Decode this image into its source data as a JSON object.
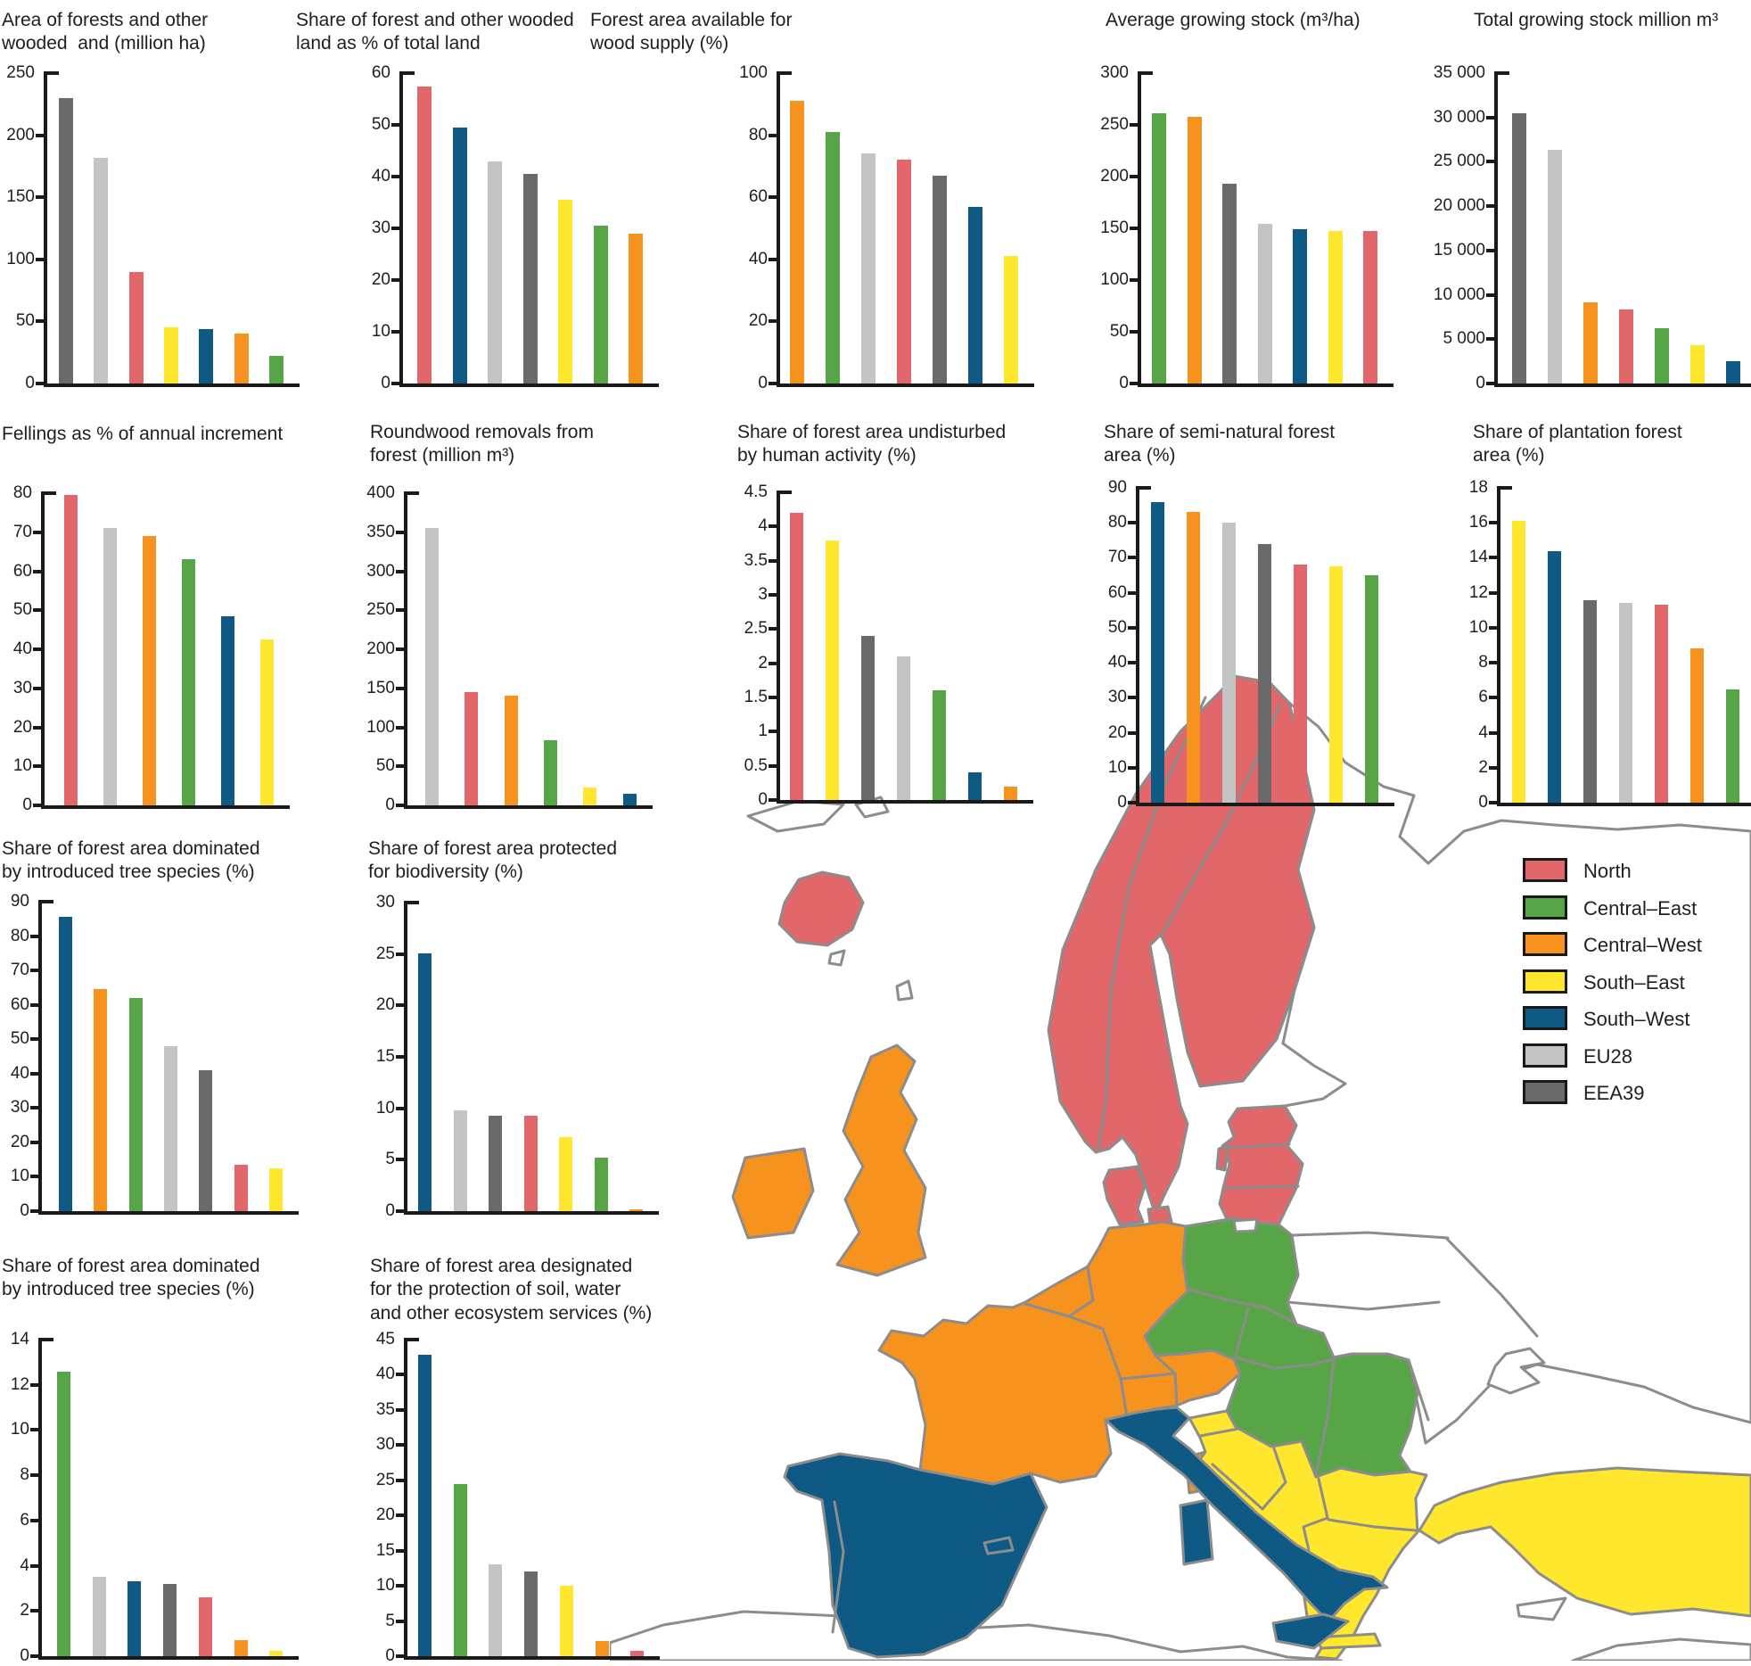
{
  "colors": {
    "regions": {
      "north": "#E2676B",
      "central_east": "#57A546",
      "central_west": "#F6921E",
      "south_east": "#FFE72D",
      "south_west": "#0E5A85",
      "eu28": "#C4C4C4",
      "eea39": "#6A6A6A"
    },
    "axis": "#1A1A1A",
    "map_border": "#8C8C8C",
    "map_plain": "#FFFFFF"
  },
  "legend": {
    "items": [
      {
        "key": "north",
        "label": "North"
      },
      {
        "key": "central_east",
        "label": "Central–East"
      },
      {
        "key": "central_west",
        "label": "Central–West"
      },
      {
        "key": "south_east",
        "label": "South–East"
      },
      {
        "key": "south_west",
        "label": "South–West"
      },
      {
        "key": "eu28",
        "label": "EU28"
      },
      {
        "key": "eea39",
        "label": "EEA39"
      }
    ]
  },
  "chart_data": [
    {
      "type": "bar",
      "title": "Area of forests and other\nwooded  and (million ha)",
      "ymax": 250,
      "yticks": [
        "250",
        "200",
        "150",
        "100",
        "50",
        "0"
      ],
      "bars": [
        {
          "region": "eea39",
          "label": "EEA39",
          "value": 230
        },
        {
          "region": "eu28",
          "label": "EU28",
          "value": 182
        },
        {
          "region": "north",
          "label": "North",
          "value": 90
        },
        {
          "region": "south_east",
          "label": "South–East",
          "value": 45
        },
        {
          "region": "south_west",
          "label": "South–West",
          "value": 44
        },
        {
          "region": "central_west",
          "label": "Central–West",
          "value": 40
        },
        {
          "region": "central_east",
          "label": "Central–East",
          "value": 22
        }
      ]
    },
    {
      "type": "bar",
      "title": "Share of forest and other wooded\nland as % of total land",
      "ymax": 60,
      "yticks": [
        "60",
        "50",
        "40",
        "30",
        "20",
        "10",
        "0"
      ],
      "bars": [
        {
          "region": "north",
          "label": "North",
          "value": 57.5
        },
        {
          "region": "south_west",
          "label": "South–West",
          "value": 49.5
        },
        {
          "region": "eu28",
          "label": "EU28",
          "value": 43
        },
        {
          "region": "eea39",
          "label": "EEA39",
          "value": 40.5
        },
        {
          "region": "south_east",
          "label": "South–East",
          "value": 35.5
        },
        {
          "region": "central_east",
          "label": "Central–East",
          "value": 30.5
        },
        {
          "region": "central_west",
          "label": "Central–West",
          "value": 29
        }
      ]
    },
    {
      "type": "bar",
      "title": "Forest area available for\nwood supply (%)",
      "ymax": 100,
      "yticks": [
        "100",
        "80",
        "60",
        "40",
        "20",
        "0"
      ],
      "bars": [
        {
          "region": "central_west",
          "label": "Central–West",
          "value": 91
        },
        {
          "region": "central_east",
          "label": "Central–East",
          "value": 81
        },
        {
          "region": "eu28",
          "label": "EU28",
          "value": 74
        },
        {
          "region": "north",
          "label": "North",
          "value": 72
        },
        {
          "region": "eea39",
          "label": "EEA39",
          "value": 67
        },
        {
          "region": "south_west",
          "label": "South–West",
          "value": 57
        },
        {
          "region": "south_east",
          "label": "South–East",
          "value": 41
        }
      ]
    },
    {
      "type": "bar",
      "title": "Average growing stock (m³/ha)",
      "ymax": 300,
      "yticks": [
        "300",
        "250",
        "200",
        "150",
        "100",
        "50",
        "0"
      ],
      "bars": [
        {
          "region": "central_east",
          "label": "Central–East",
          "value": 261
        },
        {
          "region": "central_west",
          "label": "Central–West",
          "value": 258
        },
        {
          "region": "eea39",
          "label": "EEA39",
          "value": 193
        },
        {
          "region": "eu28",
          "label": "EU28",
          "value": 154
        },
        {
          "region": "south_west",
          "label": "South–West",
          "value": 149
        },
        {
          "region": "south_east",
          "label": "South–East",
          "value": 147
        },
        {
          "region": "north",
          "label": "North",
          "value": 147
        }
      ]
    },
    {
      "type": "bar",
      "title": "Total growing stock million m³",
      "ymax": 35000,
      "yticks": [
        "35 000",
        "30 000",
        "25 000",
        "20 000",
        "15 000",
        "10 000",
        "5 000",
        "0"
      ],
      "bars": [
        {
          "region": "eea39",
          "label": "EEA39",
          "value": 30500
        },
        {
          "region": "eu28",
          "label": "EU28",
          "value": 26400
        },
        {
          "region": "central_west",
          "label": "Central–West",
          "value": 9200
        },
        {
          "region": "north",
          "label": "North",
          "value": 8300
        },
        {
          "region": "central_east",
          "label": "Central–East",
          "value": 6200
        },
        {
          "region": "south_east",
          "label": "South–East",
          "value": 4300
        },
        {
          "region": "south_west",
          "label": "South–West",
          "value": 2500
        }
      ]
    },
    {
      "type": "bar",
      "title": "Fellings as % of annual increment",
      "ymax": 80,
      "yticks": [
        "80",
        "70",
        "60",
        "50",
        "40",
        "30",
        "20",
        "10",
        "0"
      ],
      "bars": [
        {
          "region": "north",
          "label": "North",
          "value": 79.5
        },
        {
          "region": "eu28",
          "label": "EU28",
          "value": 71
        },
        {
          "region": "central_west",
          "label": "Central–West",
          "value": 69
        },
        {
          "region": "central_east",
          "label": "Central–East",
          "value": 63
        },
        {
          "region": "south_west",
          "label": "South–West",
          "value": 48.5
        },
        {
          "region": "south_east",
          "label": "South–East",
          "value": 42.5
        }
      ]
    },
    {
      "type": "bar",
      "title": "Roundwood removals from\nforest (million m³)",
      "ymax": 400,
      "yticks": [
        "400",
        "350",
        "300",
        "250",
        "200",
        "150",
        "100",
        "50",
        "0"
      ],
      "bars": [
        {
          "region": "eu28",
          "label": "EU28",
          "value": 356
        },
        {
          "region": "north",
          "label": "North",
          "value": 145
        },
        {
          "region": "central_west",
          "label": "Central–West",
          "value": 141
        },
        {
          "region": "central_east",
          "label": "Central–East",
          "value": 84
        },
        {
          "region": "south_east",
          "label": "South–East",
          "value": 23
        },
        {
          "region": "south_west",
          "label": "South–West",
          "value": 15
        }
      ]
    },
    {
      "type": "bar",
      "title": "Share of forest area undisturbed\nby human activity (%)",
      "ymax": 4.5,
      "yticks": [
        "4.5",
        "4",
        "3.5",
        "3",
        "2.5",
        "2",
        "1.5",
        "1",
        "0.5",
        "0"
      ],
      "bars": [
        {
          "region": "north",
          "label": "North",
          "value": 4.2
        },
        {
          "region": "south_east",
          "label": "South–East",
          "value": 3.8
        },
        {
          "region": "eea39",
          "label": "EEA39",
          "value": 2.4
        },
        {
          "region": "eu28",
          "label": "EU28",
          "value": 2.1
        },
        {
          "region": "central_east",
          "label": "Central–East",
          "value": 1.6
        },
        {
          "region": "south_west",
          "label": "South–West",
          "value": 0.4
        },
        {
          "region": "central_west",
          "label": "Central–West",
          "value": 0.2
        }
      ]
    },
    {
      "type": "bar",
      "title": "Share of semi-natural forest\narea (%)",
      "ymax": 90,
      "yticks": [
        "90",
        "80",
        "70",
        "60",
        "50",
        "40",
        "30",
        "20",
        "10",
        "0"
      ],
      "bars": [
        {
          "region": "south_west",
          "label": "South–West",
          "value": 86
        },
        {
          "region": "central_west",
          "label": "Central–West",
          "value": 83
        },
        {
          "region": "eu28",
          "label": "EU28",
          "value": 80
        },
        {
          "region": "eea39",
          "label": "EEA39",
          "value": 74
        },
        {
          "region": "north",
          "label": "North",
          "value": 68
        },
        {
          "region": "south_east",
          "label": "South–East",
          "value": 67.5
        },
        {
          "region": "central_east",
          "label": "Central–East",
          "value": 65
        }
      ]
    },
    {
      "type": "bar",
      "title": "Share of plantation forest\narea (%)",
      "ymax": 18,
      "yticks": [
        "18",
        "16",
        "14",
        "12",
        "10",
        "8",
        "6",
        "4",
        "2",
        "0"
      ],
      "bars": [
        {
          "region": "south_east",
          "label": "South–East",
          "value": 16.1
        },
        {
          "region": "south_west",
          "label": "South–West",
          "value": 14.4
        },
        {
          "region": "eea39",
          "label": "EEA39",
          "value": 11.6
        },
        {
          "region": "eu28",
          "label": "EU28",
          "value": 11.4
        },
        {
          "region": "north",
          "label": "North",
          "value": 11.3
        },
        {
          "region": "central_west",
          "label": "Central–West",
          "value": 8.8
        },
        {
          "region": "central_east",
          "label": "Central–East",
          "value": 6.5
        }
      ]
    },
    {
      "type": "bar",
      "title": "Share of forest area dominated\nby introduced tree species (%)",
      "ymax": 90,
      "yticks": [
        "90",
        "80",
        "70",
        "60",
        "50",
        "40",
        "30",
        "20",
        "10",
        "0"
      ],
      "bars": [
        {
          "region": "south_west",
          "label": "South–West",
          "value": 85.5
        },
        {
          "region": "central_west",
          "label": "Central–West",
          "value": 64.5
        },
        {
          "region": "central_east",
          "label": "Central–East",
          "value": 62
        },
        {
          "region": "eu28",
          "label": "EU28",
          "value": 48
        },
        {
          "region": "eea39",
          "label": "EEA39",
          "value": 41
        },
        {
          "region": "north",
          "label": "North",
          "value": 13.5
        },
        {
          "region": "south_east",
          "label": "South–East",
          "value": 12.5
        }
      ]
    },
    {
      "type": "bar",
      "title": "Share of forest area protected\nfor biodiversity (%)",
      "ymax": 30,
      "yticks": [
        "30",
        "25",
        "20",
        "15",
        "10",
        "5",
        "0"
      ],
      "bars": [
        {
          "region": "south_west",
          "label": "South–West",
          "value": 25.1
        },
        {
          "region": "eu28",
          "label": "EU28",
          "value": 9.8
        },
        {
          "region": "eea39",
          "label": "EEA39",
          "value": 9.3
        },
        {
          "region": "north",
          "label": "North",
          "value": 9.3
        },
        {
          "region": "south_east",
          "label": "South–East",
          "value": 7.2
        },
        {
          "region": "central_east",
          "label": "Central–East",
          "value": 5.2
        },
        {
          "region": "central_west",
          "label": "Central–West",
          "value": 0.2
        }
      ]
    },
    {
      "type": "bar",
      "title": "Share of forest area dominated\nby introduced tree species (%)",
      "ymax": 14,
      "yticks": [
        "14",
        "12",
        "10",
        "8",
        "6",
        "4",
        "2",
        "0"
      ],
      "bars": [
        {
          "region": "central_east",
          "label": "Central–East",
          "value": 12.6
        },
        {
          "region": "eu28",
          "label": "EU28",
          "value": 3.5
        },
        {
          "region": "south_west",
          "label": "South–West",
          "value": 3.3
        },
        {
          "region": "eea39",
          "label": "EEA39",
          "value": 3.2
        },
        {
          "region": "north",
          "label": "North",
          "value": 2.6
        },
        {
          "region": "central_west",
          "label": "Central–West",
          "value": 0.7
        },
        {
          "region": "south_east",
          "label": "South–East",
          "value": 0.25
        }
      ]
    },
    {
      "type": "bar",
      "title": "Share of forest area designated\nfor the protection of soil, water\nand other ecosystem services (%)",
      "ymax": 45,
      "yticks": [
        "45",
        "40",
        "35",
        "30",
        "25",
        "20",
        "15",
        "10",
        "5",
        "0"
      ],
      "bars": [
        {
          "region": "south_west",
          "label": "South–West",
          "value": 42.8
        },
        {
          "region": "central_east",
          "label": "Central–East",
          "value": 24.5
        },
        {
          "region": "eu28",
          "label": "EU28",
          "value": 13
        },
        {
          "region": "eea39",
          "label": "EEA39",
          "value": 12
        },
        {
          "region": "south_east",
          "label": "South–East",
          "value": 10
        },
        {
          "region": "central_west",
          "label": "Central–West",
          "value": 2.2
        },
        {
          "region": "north",
          "label": "North",
          "value": 0.7
        }
      ]
    }
  ],
  "map": {
    "region_fills": {
      "north": "north",
      "central_east": "central_east",
      "central_west": "central_west",
      "south_east": "south_east",
      "south_west": "south_west",
      "plain": "plain"
    }
  }
}
